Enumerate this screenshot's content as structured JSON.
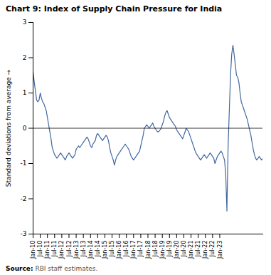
{
  "chart_data": {
    "type": "line",
    "title": "Chart 9: Index of Supply Chain Pressure for India",
    "ylabel": "Standard deviations from average",
    "source_label": "Source:",
    "source": " RBI staff estimates.",
    "color": "#4169a0",
    "grid": false,
    "ylim": [
      -3,
      3
    ],
    "yticks": [
      -3,
      -2,
      -1,
      0,
      1,
      2,
      3
    ],
    "categories": [
      "Jan-10",
      null,
      null,
      null,
      null,
      null,
      "Jul-10",
      null,
      null,
      null,
      null,
      null,
      "Jan-11",
      null,
      null,
      null,
      null,
      null,
      "Jul-11",
      null,
      null,
      null,
      null,
      null,
      "Jan-12",
      null,
      null,
      null,
      null,
      null,
      "Jul-12",
      null,
      null,
      null,
      null,
      null,
      "Jan-13",
      null,
      null,
      null,
      null,
      null,
      "Jul-13",
      null,
      null,
      null,
      null,
      null,
      "Jan-14",
      null,
      null,
      null,
      null,
      null,
      "Jul-14",
      null,
      null,
      null,
      null,
      null,
      "Jan-15",
      null,
      null,
      null,
      null,
      null,
      "Jul-15",
      null,
      null,
      null,
      null,
      null,
      "Jan-16",
      null,
      null,
      null,
      null,
      null,
      "Jul-16",
      null,
      null,
      null,
      null,
      null,
      "Jan-17",
      null,
      null,
      null,
      null,
      null,
      "Jul-17",
      null,
      null,
      null,
      null,
      null,
      "Jan-18",
      null,
      null,
      null,
      null,
      null,
      "Jul-18",
      null,
      null,
      null,
      null,
      null,
      "Jan-19",
      null,
      null,
      null,
      null,
      null,
      "Jul-19",
      null,
      null,
      null,
      null,
      null,
      "Jan-20",
      null,
      null,
      null,
      null,
      null,
      "Jul-20",
      null,
      null,
      null,
      null,
      null,
      "Jan-21",
      null,
      null,
      null,
      null,
      null,
      "Jul-21",
      null,
      null,
      null,
      null,
      null,
      "Jan-22",
      null,
      null,
      null,
      null,
      null,
      "Jul-22",
      null,
      null,
      null,
      null,
      null,
      "Jan-23",
      null,
      null,
      null,
      null,
      null,
      null,
      null,
      null,
      null,
      null,
      null,
      null,
      null,
      null,
      null,
      null,
      null,
      null,
      null,
      null,
      null,
      null,
      null,
      null,
      null,
      null,
      null,
      null,
      null,
      null,
      null,
      null,
      null,
      null,
      null,
      null
    ],
    "values": [
      1.6,
      1.3,
      1.05,
      0.8,
      0.75,
      0.8,
      1.0,
      0.85,
      0.75,
      0.7,
      0.6,
      0.5,
      0.3,
      0.1,
      -0.1,
      -0.3,
      -0.55,
      -0.65,
      -0.75,
      -0.8,
      -0.85,
      -0.8,
      -0.75,
      -0.7,
      -0.75,
      -0.8,
      -0.85,
      -0.9,
      -0.8,
      -0.75,
      -0.7,
      -0.75,
      -0.8,
      -0.85,
      -0.8,
      -0.75,
      -0.6,
      -0.55,
      -0.5,
      -0.55,
      -0.5,
      -0.45,
      -0.4,
      -0.35,
      -0.3,
      -0.25,
      -0.3,
      -0.4,
      -0.5,
      -0.55,
      -0.45,
      -0.4,
      -0.35,
      -0.2,
      -0.15,
      -0.2,
      -0.25,
      -0.3,
      -0.35,
      -0.3,
      -0.25,
      -0.2,
      -0.25,
      -0.35,
      -0.55,
      -0.7,
      -0.8,
      -0.9,
      -1.05,
      -0.9,
      -0.8,
      -0.75,
      -0.7,
      -0.65,
      -0.6,
      -0.55,
      -0.5,
      -0.45,
      -0.5,
      -0.55,
      -0.6,
      -0.7,
      -0.8,
      -0.85,
      -0.9,
      -0.85,
      -0.8,
      -0.75,
      -0.7,
      -0.65,
      -0.5,
      -0.35,
      -0.2,
      0.0,
      0.05,
      0.1,
      0.05,
      0.0,
      0.05,
      0.1,
      0.15,
      0.05,
      0.0,
      -0.05,
      -0.1,
      -0.1,
      -0.05,
      0.0,
      0.1,
      0.2,
      0.35,
      0.45,
      0.5,
      0.4,
      0.3,
      0.25,
      0.2,
      0.15,
      0.1,
      0.05,
      -0.05,
      -0.1,
      -0.15,
      -0.2,
      -0.25,
      -0.3,
      -0.2,
      -0.1,
      0.0,
      -0.05,
      -0.1,
      -0.2,
      -0.3,
      -0.4,
      -0.5,
      -0.6,
      -0.7,
      -0.75,
      -0.8,
      -0.85,
      -0.9,
      -0.85,
      -0.8,
      -0.75,
      -0.8,
      -0.85,
      -0.8,
      -0.75,
      -0.7,
      -0.75,
      -0.8,
      -0.85,
      -1.0,
      -0.9,
      -0.8,
      -0.75,
      -0.7,
      -0.65,
      -0.7,
      -0.8,
      -0.9,
      -1.3,
      -2.35,
      -0.5,
      0.5,
      1.5,
      2.1,
      2.35,
      2.1,
      1.8,
      1.5,
      1.45,
      1.3,
      1.0,
      0.75,
      0.65,
      0.55,
      0.45,
      0.35,
      0.25,
      0.1,
      -0.05,
      -0.2,
      -0.4,
      -0.6,
      -0.75,
      -0.85,
      -0.9,
      -0.85,
      -0.8,
      -0.85,
      -0.9,
      -0.85
    ]
  }
}
